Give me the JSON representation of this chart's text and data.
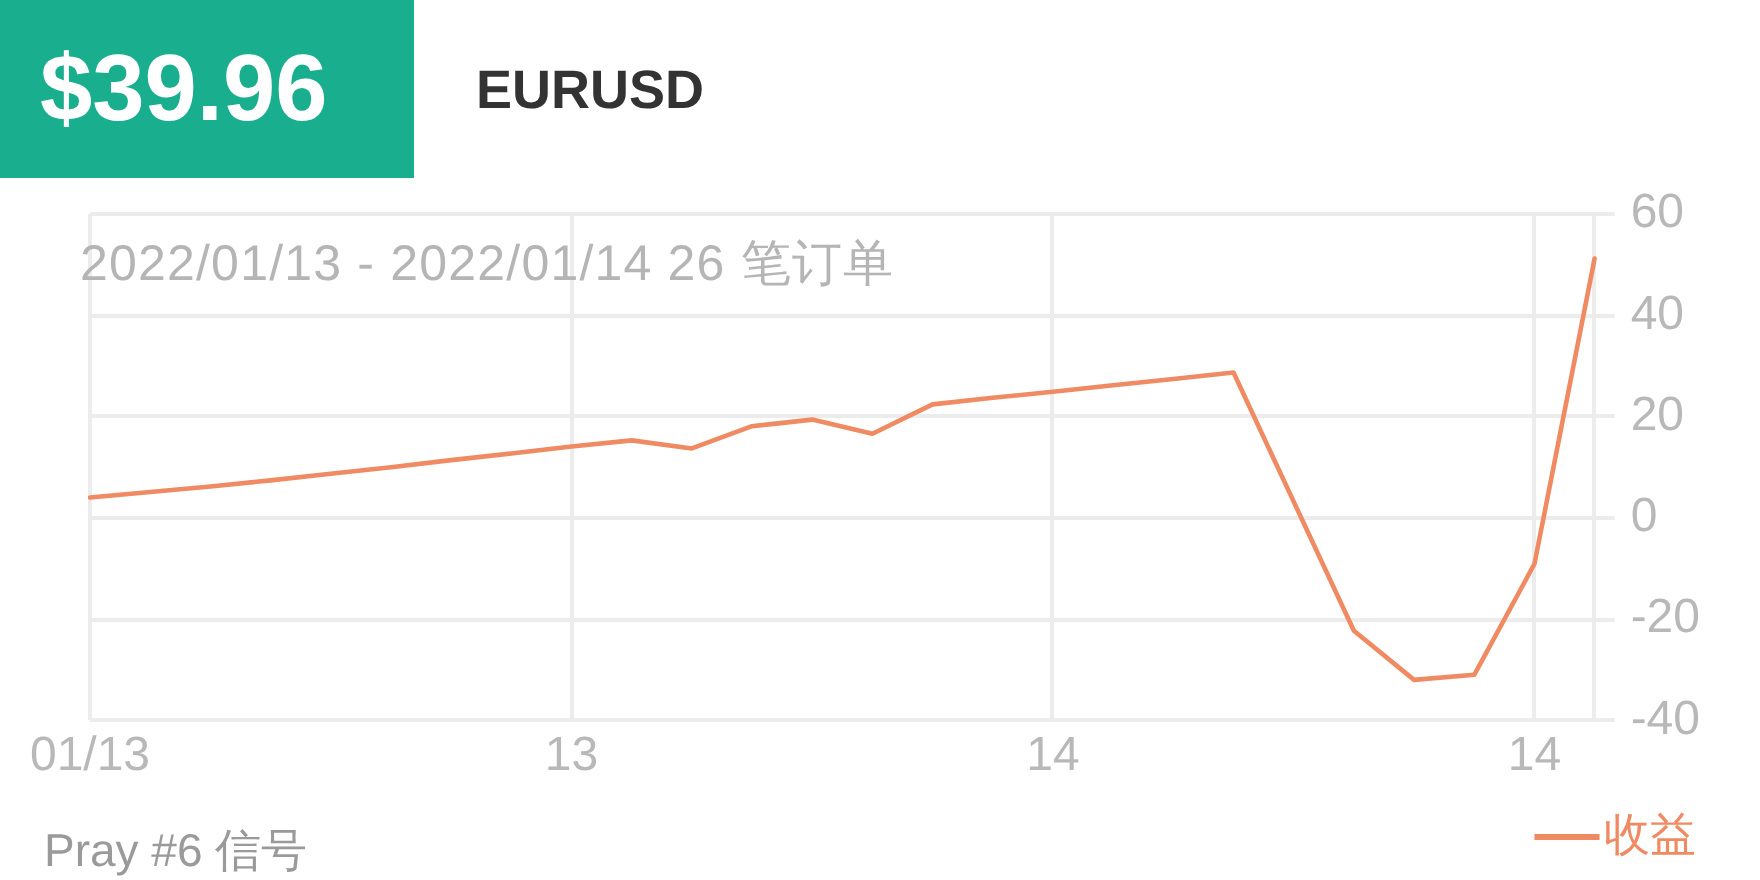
{
  "chart_data": {
    "type": "line",
    "title": "EURUSD",
    "subtitle": "2022/01/13 - 2022/01/14 26 笔订单",
    "annotations": [
      "$39.96",
      "Pray #6 信号"
    ],
    "categories": [
      "01/13",
      null,
      null,
      null,
      null,
      null,
      null,
      null,
      "13",
      null,
      null,
      null,
      null,
      null,
      null,
      null,
      "14",
      null,
      null,
      null,
      null,
      null,
      null,
      null,
      "14",
      null
    ],
    "series": [
      {
        "name": "收益",
        "color": "#ef8a62",
        "values": [
          4.0,
          5.1,
          6.2,
          7.4,
          8.7,
          10.0,
          11.4,
          12.7,
          14.1,
          15.3,
          13.7,
          18.1,
          19.4,
          16.6,
          22.4,
          23.7,
          24.9,
          26.2,
          27.4,
          28.7,
          3.2,
          -22.3,
          -32.0,
          -31.0,
          -9.1,
          51.2
        ]
      }
    ],
    "ylim": [
      -40,
      60
    ],
    "yticks": [
      -40,
      -20,
      0,
      20,
      40,
      60
    ],
    "grid": true,
    "legend": "bottom right",
    "marker": "none"
  }
}
